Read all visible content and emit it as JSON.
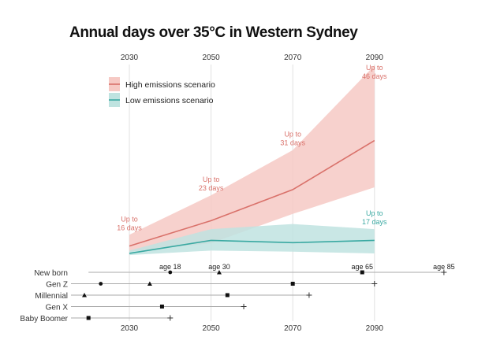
{
  "chart_data": {
    "type": "area",
    "title": "Annual days over 35°C in Western Sydney",
    "x": [
      2030,
      2050,
      2070,
      2090
    ],
    "x_tick_labels": [
      "2030",
      "2050",
      "2070",
      "2090"
    ],
    "grid": "vertical lines at x ticks",
    "legend_placement": "top-left",
    "series": [
      {
        "name": "High emissions scenario",
        "color": "#d9716a",
        "band_color": "#f6c9c4",
        "mean": [
          14,
          18.5,
          24,
          32.7
        ],
        "upper": [
          16,
          23,
          31,
          46
        ],
        "lower": [
          13,
          14.5,
          19.7,
          24.4
        ],
        "annotations": [
          {
            "x": 2030,
            "text": [
              "Up to",
              "16 days"
            ]
          },
          {
            "x": 2050,
            "text": [
              "Up to",
              "23 days"
            ]
          },
          {
            "x": 2070,
            "text": [
              "Up to",
              "31 days"
            ]
          },
          {
            "x": 2090,
            "text": [
              "Up to",
              "46 days"
            ]
          }
        ]
      },
      {
        "name": "Low emissions scenario",
        "color": "#3aa9a2",
        "band_color": "#bfe3e0",
        "mean": [
          12.7,
          15,
          14.6,
          15
        ],
        "upper": [
          13.2,
          17,
          17.9,
          17
        ],
        "lower": [
          12.4,
          13.2,
          13,
          12.7
        ],
        "annotations": [
          {
            "x": 2090,
            "text": [
              "Up to",
              "17 days"
            ]
          }
        ]
      }
    ],
    "lifespans": [
      {
        "name": "New born",
        "start": 2020,
        "markers": [
          {
            "year": 2040,
            "shape": "circle",
            "label": "age 18"
          },
          {
            "year": 2052,
            "shape": "triangle",
            "label": "age 30"
          },
          {
            "year": 2087,
            "shape": "square",
            "label": "age 65"
          },
          {
            "year": 2107,
            "shape": "plus",
            "label": "age 85"
          }
        ]
      },
      {
        "name": "Gen Z",
        "start": 2015,
        "markers": [
          {
            "year": 2023,
            "shape": "circle"
          },
          {
            "year": 2035,
            "shape": "triangle"
          },
          {
            "year": 2070,
            "shape": "square"
          },
          {
            "year": 2090,
            "shape": "plus"
          }
        ]
      },
      {
        "name": "Millennial",
        "start": 2015,
        "markers": [
          {
            "year": 2019,
            "shape": "triangle"
          },
          {
            "year": 2054,
            "shape": "square"
          },
          {
            "year": 2074,
            "shape": "plus"
          }
        ]
      },
      {
        "name": "Gen X",
        "start": 2015,
        "markers": [
          {
            "year": 2038,
            "shape": "square"
          },
          {
            "year": 2058,
            "shape": "plus"
          }
        ]
      },
      {
        "name": "Baby Boomer",
        "start": 2015,
        "markers": [
          {
            "year": 2020,
            "shape": "square"
          },
          {
            "year": 2040,
            "shape": "plus"
          }
        ]
      }
    ]
  }
}
